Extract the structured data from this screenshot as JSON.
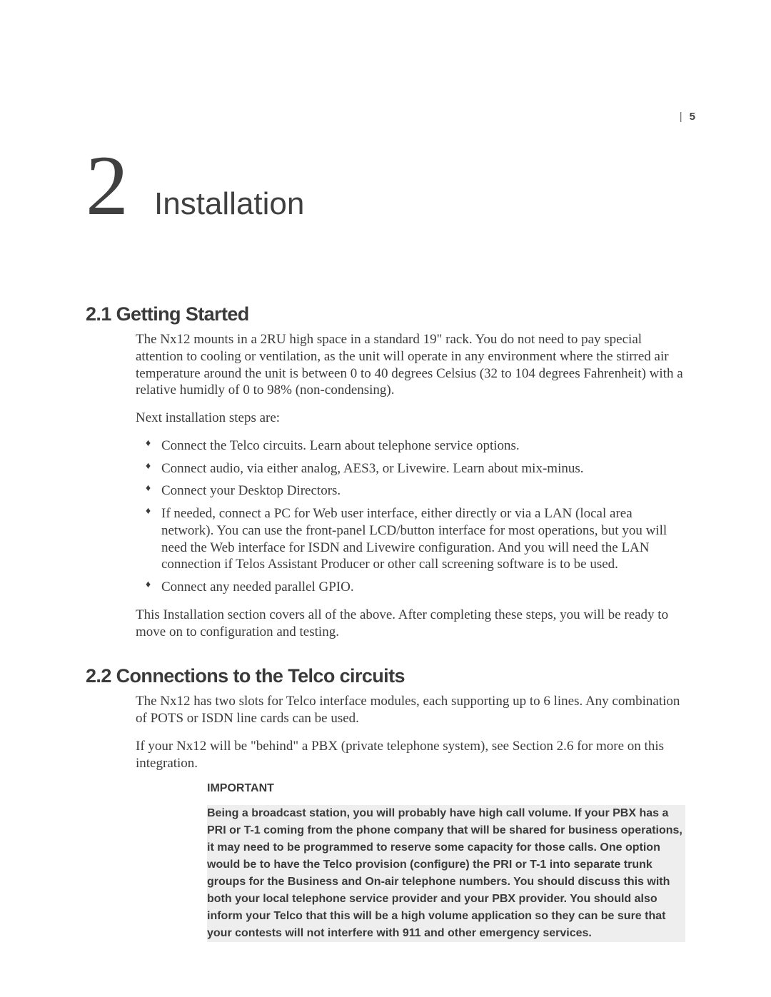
{
  "page": {
    "number": "5",
    "pipe": "|"
  },
  "chapter": {
    "number": "2",
    "title": "Installation"
  },
  "section1": {
    "heading": "2.1  Getting Started",
    "p1": "The Nx12 mounts in a 2RU high space in a standard 19\" rack. You do not need to pay special attention to cooling or ventilation, as the unit will operate in any environment where the stirred air temperature around the unit is between 0 to 40 degrees Celsius (32 to 104 degrees Fahrenheit) with a relative humidly of 0 to 98% (non-condensing).",
    "p2": "Next installation steps are:",
    "bullets": [
      "Connect the Telco circuits. Learn about telephone service options.",
      "Connect audio, via either analog, AES3, or Livewire. Learn about mix-minus.",
      "Connect your Desktop Directors.",
      "If needed, connect a PC for Web user interface, either directly or via a LAN (local area network). You can use the front-panel LCD/button interface for most operations, but you will need the Web interface for ISDN and Livewire configuration. And you will need the LAN connection if Telos Assistant Producer or other call screening software is to be used.",
      "Connect any needed parallel GPIO."
    ],
    "p3": "This Installation section covers all of the above. After completing these steps, you will be ready to move on to configuration and testing."
  },
  "section2": {
    "heading": "2.2  Connections to the Telco circuits",
    "p1": "The Nx12 has two slots for Telco interface modules, each supporting up to 6 lines. Any combination of POTS or ISDN line cards can be used.",
    "p2": "If your Nx12 will be \"behind\" a PBX (private telephone system), see Section 2.6 for more on this integration.",
    "important_label": "IMPORTANT",
    "important_text": "Being a broadcast station, you will probably have high call volume. If your PBX has a PRI or T-1 coming from the phone company that will be shared for business operations, it may need to be programmed to reserve some capacity for those calls. One option would be to have the Telco provision (configure) the PRI or T-1 into separate trunk groups for the Business and On-air telephone numbers. You should discuss this with both your local telephone service provider and your PBX provider.  You should also inform your Telco that this will be a high volume application so they can be sure that your contests will not interfere with 911 and other emergency services."
  },
  "style": {
    "page_bg": "#ffffff",
    "text_color": "#3a3a3a",
    "highlight_bg": "#eeeeee",
    "body_font": "Times New Roman",
    "heading_font": "Helvetica",
    "chapter_number_fontsize": 120,
    "chapter_title_fontsize": 44,
    "section_heading_fontsize": 27,
    "body_fontsize": 19,
    "important_fontsize": 16
  }
}
